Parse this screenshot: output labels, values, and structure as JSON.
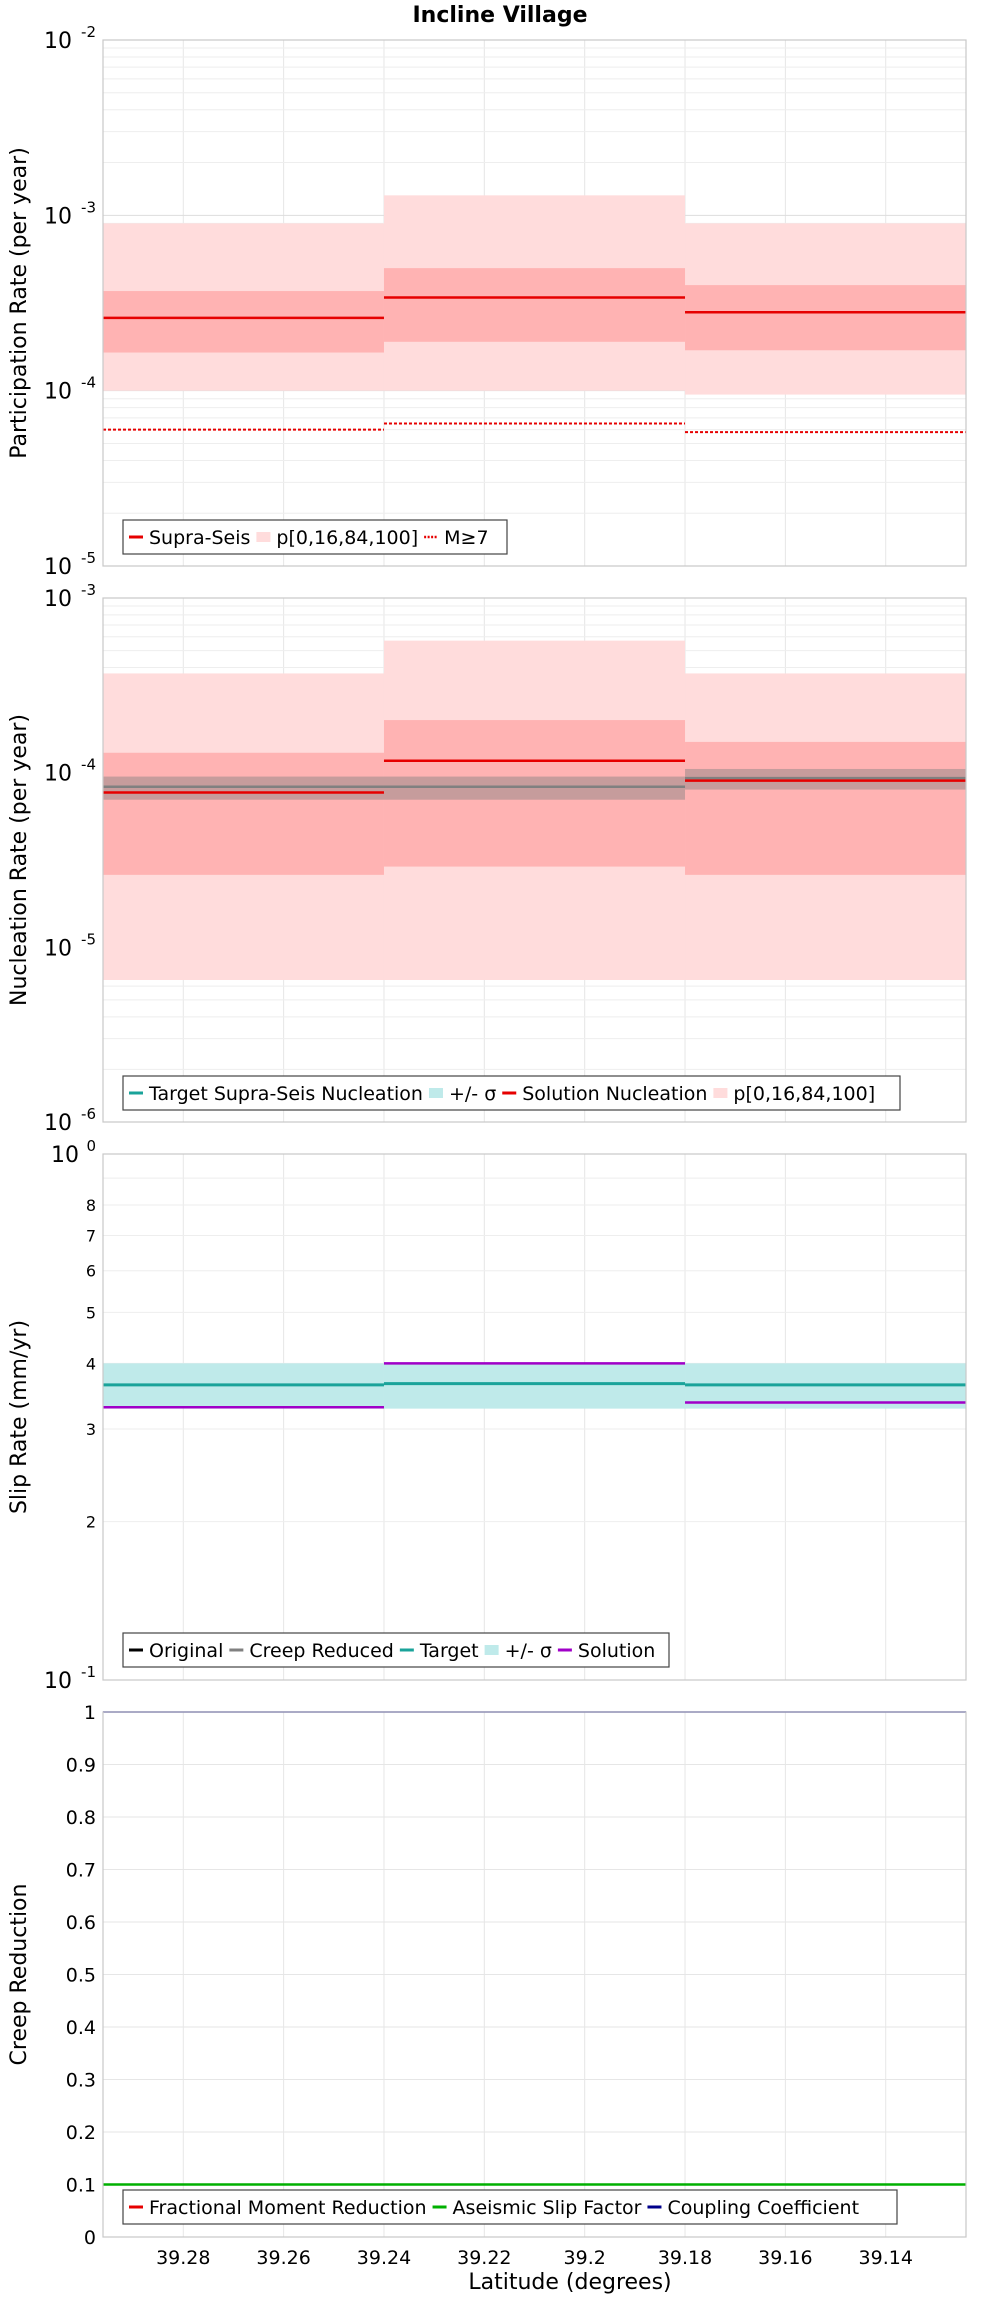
{
  "title": "Incline Village",
  "xlabel": "Latitude (degrees)",
  "x_ticks": [
    "39.28",
    "39.26",
    "39.24",
    "39.22",
    "39.2",
    "39.18",
    "39.16",
    "39.14"
  ],
  "colors": {
    "red": "#e60000",
    "red_inner": "#ffb3b3",
    "red_outer": "#ffdcdc",
    "teal": "#1aa39a",
    "teal_band": "#bfeaea",
    "gray": "#808080",
    "purple": "#a000c8",
    "green": "#00b000",
    "navy": "#00008b",
    "black": "#000000"
  },
  "chart_data": [
    {
      "type": "line",
      "ylabel": "Participation Rate (per year)",
      "yscale": "log",
      "ylim": [
        1e-05,
        0.01
      ],
      "xlim": [
        39.296,
        39.124
      ],
      "x_ticks": [
        39.28,
        39.26,
        39.24,
        39.22,
        39.2,
        39.18,
        39.16,
        39.14
      ],
      "y_ticks": [
        {
          "base": "10",
          "exp": "-5"
        },
        {
          "base": "10",
          "exp": "-4"
        },
        {
          "base": "10",
          "exp": "-3"
        },
        {
          "base": "10",
          "exp": "-2"
        }
      ],
      "segments": [
        [
          39.296,
          39.24
        ],
        [
          39.24,
          39.18
        ],
        [
          39.18,
          39.124
        ]
      ],
      "bands": [
        {
          "name": "p[0,16,84,100]",
          "color": "red_outer",
          "lower": [
            0.0001,
            0.0001,
            9.5e-05
          ],
          "upper": [
            0.0009,
            0.0013,
            0.0009
          ]
        },
        {
          "name": "",
          "color": "red_inner",
          "lower": [
            0.000165,
            0.00019,
            0.00017
          ],
          "upper": [
            0.00037,
            0.0005,
            0.0004
          ]
        }
      ],
      "series": [
        {
          "name": "Supra-Seis",
          "color": "red",
          "dash": "",
          "width": 2.5,
          "values": [
            0.00026,
            0.00034,
            0.00028
          ]
        },
        {
          "name": "M≥7",
          "color": "red",
          "dash": "3,2",
          "width": 2,
          "values": [
            6e-05,
            6.5e-05,
            5.8e-05
          ]
        }
      ],
      "legend": [
        {
          "label": "Supra-Seis",
          "kind": "line",
          "color": "red",
          "dash": ""
        },
        {
          "label": "p[0,16,84,100]",
          "kind": "band",
          "color": "red_outer"
        },
        {
          "label": "M≥7",
          "kind": "line",
          "color": "red",
          "dash": "3,2"
        }
      ]
    },
    {
      "type": "line",
      "ylabel": "Nucleation Rate (per year)",
      "yscale": "log",
      "ylim": [
        1e-06,
        0.001
      ],
      "xlim": [
        39.296,
        39.124
      ],
      "x_ticks": [
        39.28,
        39.26,
        39.24,
        39.22,
        39.2,
        39.18,
        39.16,
        39.14
      ],
      "y_ticks": [
        {
          "base": "10",
          "exp": "-6"
        },
        {
          "base": "10",
          "exp": "-5"
        },
        {
          "base": "10",
          "exp": "-4"
        },
        {
          "base": "10",
          "exp": "-3"
        }
      ],
      "segments": [
        [
          39.296,
          39.24
        ],
        [
          39.24,
          39.18
        ],
        [
          39.18,
          39.124
        ]
      ],
      "bands": [
        {
          "name": "p[0,16,84,100]",
          "color": "red_outer",
          "lower": [
            6.5e-06,
            6.5e-06,
            6.5e-06
          ],
          "upper": [
            0.00037,
            0.00057,
            0.00037
          ]
        },
        {
          "name": "",
          "color": "red_inner",
          "lower": [
            2.6e-05,
            2.9e-05,
            2.6e-05
          ],
          "upper": [
            0.00013,
            0.0002,
            0.00015
          ]
        },
        {
          "name": "+/- σ",
          "color": "gray",
          "opacity": 0.45,
          "lower": [
            7e-05,
            7e-05,
            8e-05
          ],
          "upper": [
            9.5e-05,
            9.5e-05,
            0.000105
          ]
        }
      ],
      "series": [
        {
          "name": "",
          "color": "gray",
          "dash": "",
          "width": 2.5,
          "values": [
            8.3e-05,
            8.3e-05,
            9.3e-05
          ]
        },
        {
          "name": "Solution Nucleation",
          "color": "red",
          "dash": "",
          "width": 2.5,
          "values": [
            7.7e-05,
            0.000117,
            9e-05
          ]
        }
      ],
      "legend": [
        {
          "label": "Target Supra-Seis Nucleation",
          "kind": "line",
          "color": "teal",
          "dash": ""
        },
        {
          "label": "+/- σ",
          "kind": "band",
          "color": "teal_band"
        },
        {
          "label": "Solution Nucleation",
          "kind": "line",
          "color": "red",
          "dash": ""
        },
        {
          "label": "p[0,16,84,100]",
          "kind": "band",
          "color": "red_outer"
        }
      ]
    },
    {
      "type": "line",
      "ylabel": "Slip Rate (mm/yr)",
      "yscale": "log",
      "ylim": [
        0.1,
        1
      ],
      "xlim": [
        39.296,
        39.124
      ],
      "x_ticks": [
        39.28,
        39.26,
        39.24,
        39.22,
        39.2,
        39.18,
        39.16,
        39.14
      ],
      "y_ticks": [
        {
          "base": "10",
          "exp": "-1"
        },
        {
          "base": "10",
          "exp": "0"
        }
      ],
      "y_minor_labels": [
        {
          "value": 0.2,
          "label": "2"
        },
        {
          "value": 0.3,
          "label": "3"
        },
        {
          "value": 0.4,
          "label": "4"
        },
        {
          "value": 0.5,
          "label": "5"
        },
        {
          "value": 0.6,
          "label": "6"
        },
        {
          "value": 0.7,
          "label": "7"
        },
        {
          "value": 0.8,
          "label": "8"
        }
      ],
      "segments": [
        [
          39.296,
          39.24
        ],
        [
          39.24,
          39.18
        ],
        [
          39.18,
          39.124
        ]
      ],
      "bands": [
        {
          "name": "+/- σ",
          "color": "teal_band",
          "lower": [
            0.328,
            0.328,
            0.328
          ],
          "upper": [
            0.4,
            0.4,
            0.4
          ]
        }
      ],
      "series": [
        {
          "name": "Target",
          "color": "teal",
          "dash": "",
          "width": 3,
          "values": [
            0.364,
            0.366,
            0.364
          ]
        },
        {
          "name": "Solution",
          "color": "purple",
          "dash": "",
          "width": 2.5,
          "values": [
            0.33,
            0.4,
            0.337
          ]
        }
      ],
      "legend": [
        {
          "label": "Original",
          "kind": "line",
          "color": "black",
          "dash": ""
        },
        {
          "label": "Creep Reduced",
          "kind": "line",
          "color": "gray",
          "dash": ""
        },
        {
          "label": "Target",
          "kind": "line",
          "color": "teal",
          "dash": ""
        },
        {
          "label": "+/- σ",
          "kind": "band",
          "color": "teal_band"
        },
        {
          "label": "Solution",
          "kind": "line",
          "color": "purple",
          "dash": ""
        }
      ]
    },
    {
      "type": "line",
      "ylabel": "Creep Reduction",
      "yscale": "linear",
      "ylim": [
        0,
        1
      ],
      "xlim": [
        39.296,
        39.124
      ],
      "x_ticks": [
        39.28,
        39.26,
        39.24,
        39.22,
        39.2,
        39.18,
        39.16,
        39.14
      ],
      "y_tick_labels": [
        "0",
        "0.1",
        "0.2",
        "0.3",
        "0.4",
        "0.5",
        "0.6",
        "0.7",
        "0.8",
        "0.9",
        "1"
      ],
      "segments": [
        [
          39.296,
          39.124
        ]
      ],
      "bands": [],
      "series": [
        {
          "name": "Aseismic Slip Factor",
          "color": "green",
          "dash": "",
          "width": 2.5,
          "values": [
            0.1
          ]
        },
        {
          "name": "Coupling Coefficient",
          "color": "navy",
          "dash": "",
          "width": 1.5,
          "values": [
            1
          ]
        }
      ],
      "legend": [
        {
          "label": "Fractional Moment Reduction",
          "kind": "line",
          "color": "red",
          "dash": ""
        },
        {
          "label": "Aseismic Slip Factor",
          "kind": "line",
          "color": "green",
          "dash": ""
        },
        {
          "label": "Coupling Coefficient",
          "kind": "line",
          "color": "navy",
          "dash": ""
        }
      ]
    }
  ]
}
